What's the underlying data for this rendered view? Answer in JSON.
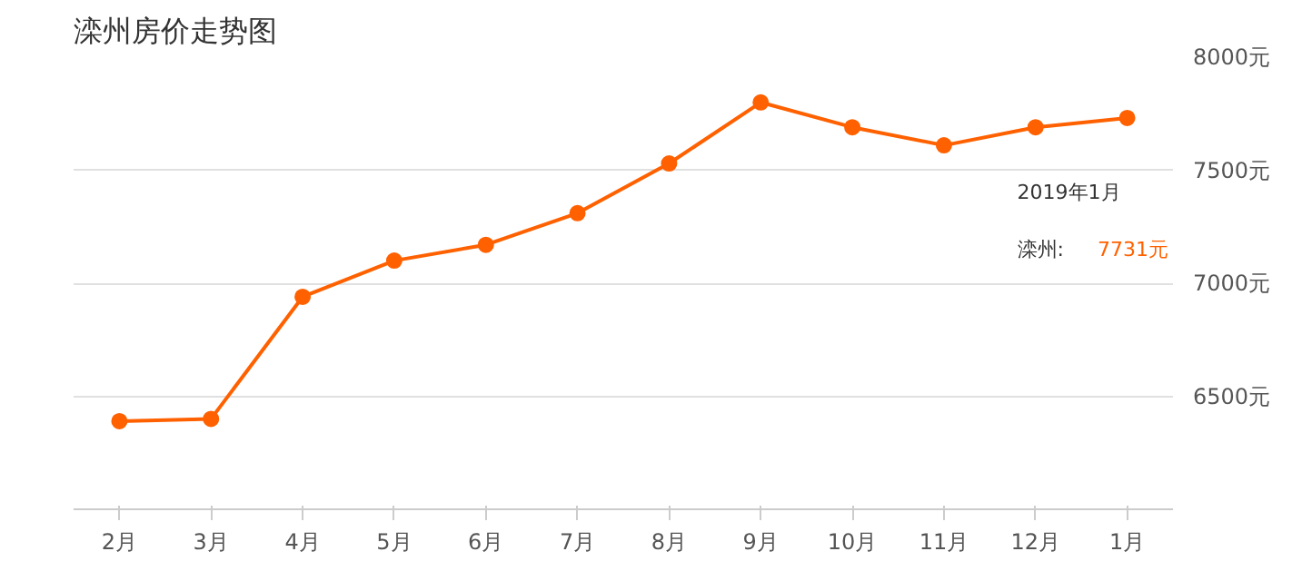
{
  "chart_data": {
    "type": "line",
    "title": "滦州房价走势图",
    "categories": [
      "2月",
      "3月",
      "4月",
      "5月",
      "6月",
      "7月",
      "8月",
      "9月",
      "10月",
      "11月",
      "12月",
      "1月"
    ],
    "series": [
      {
        "color": "#ff6100",
        "values": [
          6390,
          6400,
          6940,
          7100,
          7170,
          7310,
          7530,
          7800,
          7690,
          7610,
          7690,
          7731
        ]
      }
    ],
    "ylim": [
      6000,
      8000
    ],
    "yticks": [
      {
        "value": 6500,
        "label": "6500元"
      },
      {
        "value": 7000,
        "label": "7000元"
      },
      {
        "value": 7500,
        "label": "7500元"
      },
      {
        "value": 8000,
        "label": "8000元"
      }
    ],
    "grid": "y",
    "marker": "circle",
    "line_style": "solid",
    "annotations": [
      "2019年1月",
      "滦州:",
      "7731元"
    ]
  }
}
